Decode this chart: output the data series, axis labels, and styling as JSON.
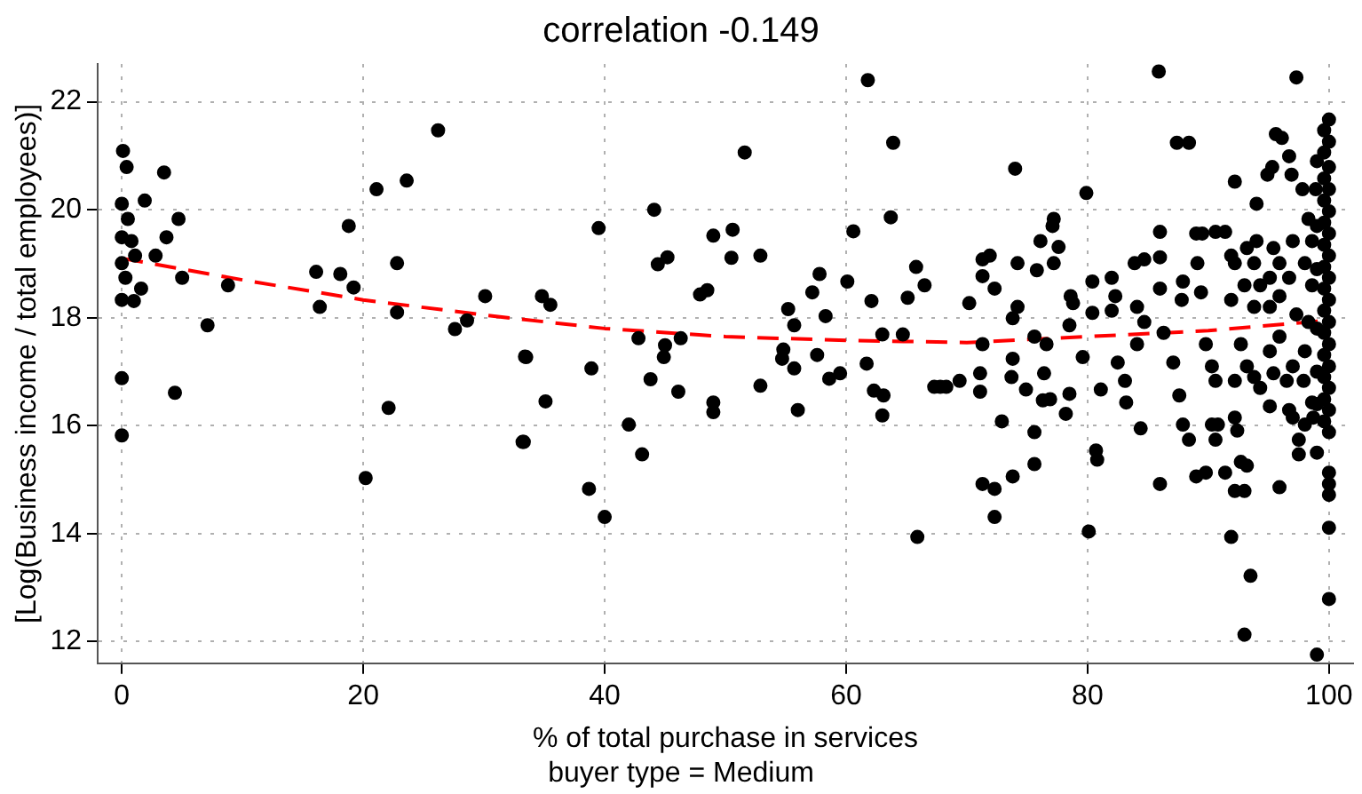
{
  "chart_data": {
    "type": "scatter",
    "title": "correlation -0.149",
    "subtitle": "buyer type = Medium",
    "xlabel": "% of total purchase in services",
    "ylabel": "[Log(Business income / total employees)]",
    "xlim": [
      -2,
      102
    ],
    "xticks": [
      0,
      20,
      40,
      60,
      80,
      100
    ],
    "ylim": [
      11.6,
      22.7
    ],
    "yticks": [
      12,
      14,
      16,
      18,
      20,
      22
    ],
    "grid": true,
    "legend": false,
    "series": [
      {
        "color": "#000000",
        "marker": "circle",
        "x": [
          0.1,
          0.4,
          3.5,
          0,
          1.9,
          0.5,
          4.7,
          0,
          3.7,
          0.8,
          0,
          2.8,
          1.1,
          5,
          0.3,
          1.6,
          0,
          1,
          8.8,
          7.1,
          0,
          4.4,
          0,
          16.1,
          18.1,
          19.2,
          16.4,
          21.1,
          23.6,
          26.2,
          18.8,
          22.8,
          22.8,
          22.1,
          20.2,
          27.6,
          28.6,
          30.1,
          33.4,
          33.2,
          34.8,
          35.5,
          33.5,
          35.1,
          33.3,
          39.5,
          38.9,
          42,
          43.1,
          38.7,
          40,
          42.8,
          44.1,
          44.4,
          45.2,
          45,
          44.9,
          46.3,
          43.8,
          46.1,
          47.9,
          48.5,
          49,
          50.6,
          50.5,
          51.6,
          52.9,
          49,
          49,
          52.9,
          54.8,
          55.2,
          55.7,
          54.7,
          55.7,
          56,
          57.2,
          57.8,
          58.3,
          57.6,
          58.6,
          59.5,
          60.1,
          60.6,
          61.8,
          63.9,
          63.7,
          62.1,
          61.7,
          62.3,
          63.1,
          63,
          63,
          64.7,
          65.1,
          65.8,
          66.5,
          67.3,
          65.9,
          67.8,
          68.3,
          69.4,
          70.2,
          71.3,
          71.9,
          71.3,
          72.3,
          71.3,
          71.1,
          71.1,
          72.9,
          71.3,
          72.3,
          72.3,
          73.8,
          74,
          74.2,
          73.8,
          74.2,
          73.8,
          73.7,
          74.9,
          75.6,
          75.6,
          75.8,
          76.1,
          77.2,
          77.1,
          77.6,
          77.2,
          75.6,
          76.6,
          76.4,
          76.9,
          76.3,
          78.6,
          78.8,
          78.5,
          78.5,
          78.2,
          79.6,
          79.9,
          80.4,
          80.4,
          81.1,
          80.7,
          80.8,
          80.1,
          82,
          82.3,
          82,
          82.5,
          83.1,
          83.2,
          83.9,
          84.7,
          86,
          84.1,
          84.1,
          84.4,
          84.7,
          85.9,
          86,
          86,
          86,
          86.3,
          87.1,
          87.4,
          88.4,
          87.9,
          87.8,
          87.6,
          87.9,
          88.4,
          89,
          89.5,
          89.1,
          89.4,
          89.8,
          90.3,
          90.6,
          89,
          89.8,
          90.3,
          90.8,
          90.6,
          91.4,
          90.6,
          91.4,
          92.2,
          91.9,
          91.9,
          92.2,
          92.2,
          92.2,
          92.4,
          92.7,
          91.9,
          92.2,
          93,
          93.5,
          93,
          93.2,
          93.2,
          94,
          94,
          93.8,
          94.3,
          93,
          93.8,
          92.7,
          93.2,
          93.8,
          94.3,
          94.9,
          95.3,
          95.6,
          96.1,
          96.9,
          97.8,
          96.7,
          97.3,
          95.4,
          95.1,
          95.1,
          95.9,
          95.9,
          96.7,
          97,
          97.3,
          95.9,
          95.1,
          95.4,
          96.5,
          97,
          95.1,
          96.7,
          97,
          97.5,
          98,
          97.5,
          95.9,
          97.9,
          98,
          98.3,
          98,
          98.3,
          98.6,
          98.6,
          98.9,
          98.6,
          98.7,
          100,
          99.6,
          100,
          99.6,
          100,
          99.6,
          100,
          99.6,
          100,
          99.6,
          100,
          99.6,
          100,
          99.6,
          100,
          99.6,
          100,
          99.6,
          100,
          99.6,
          100,
          99.6,
          100,
          99.6,
          100,
          99.6,
          100,
          99.6,
          100,
          100,
          100,
          100,
          100,
          100,
          99,
          99,
          99,
          99,
          99,
          99,
          99,
          99
        ],
        "values": [
          21.09,
          20.79,
          20.69,
          20.11,
          20.17,
          19.83,
          19.83,
          19.49,
          19.49,
          19.42,
          19.01,
          19.15,
          19.15,
          18.74,
          18.74,
          18.54,
          18.33,
          18.31,
          18.6,
          17.86,
          16.88,
          16.61,
          15.82,
          18.85,
          18.81,
          18.56,
          18.2,
          20.38,
          20.54,
          21.47,
          19.7,
          19.01,
          18.1,
          16.33,
          15.03,
          17.79,
          17.95,
          18.4,
          17.28,
          15.7,
          18.4,
          18.24,
          17.27,
          16.45,
          15.7,
          19.66,
          17.06,
          16.02,
          15.47,
          14.83,
          14.31,
          17.62,
          20,
          18.99,
          19.12,
          17.49,
          17.27,
          17.62,
          16.86,
          16.63,
          18.43,
          18.51,
          19.52,
          19.63,
          19.11,
          21.06,
          19.15,
          16.43,
          16.25,
          16.74,
          17.41,
          18.16,
          17.86,
          17.24,
          17.06,
          16.29,
          18.47,
          18.81,
          18.03,
          17.31,
          16.87,
          16.97,
          18.67,
          19.6,
          22.4,
          21.24,
          19.86,
          18.31,
          17.15,
          16.65,
          16.56,
          16.19,
          17.69,
          17.69,
          18.37,
          18.94,
          18.6,
          16.72,
          13.94,
          16.72,
          16.72,
          16.83,
          18.27,
          19.08,
          19.15,
          18.77,
          18.54,
          17.51,
          16.97,
          16.63,
          16.08,
          14.92,
          14.83,
          14.31,
          15.06,
          20.76,
          19.01,
          17.99,
          18.2,
          17.24,
          16.9,
          16.67,
          15.88,
          15.29,
          18.88,
          19.42,
          19.83,
          19.7,
          19.31,
          19.01,
          17.65,
          17.51,
          16.97,
          16.49,
          16.47,
          18.4,
          18.27,
          17.86,
          16.59,
          16.22,
          17.27,
          20.31,
          18.67,
          18.09,
          16.67,
          15.54,
          15.37,
          14.04,
          18.74,
          18.4,
          18.13,
          17.17,
          16.83,
          16.43,
          19.01,
          19.08,
          19.12,
          18.2,
          17.51,
          15.95,
          17.92,
          22.56,
          19.59,
          18.54,
          14.92,
          17.72,
          17.17,
          21.24,
          21.24,
          18.67,
          18.33,
          16.56,
          16.02,
          15.74,
          19.56,
          19.56,
          19.01,
          18.47,
          17.51,
          17.1,
          16.83,
          15.06,
          15.13,
          16.02,
          16.02,
          15.74,
          15.13,
          19.59,
          19.59,
          20.52,
          19.15,
          18.33,
          19.01,
          16.83,
          16.15,
          15.91,
          15.33,
          13.94,
          14.79,
          14.79,
          13.22,
          12.13,
          15.26,
          19.29,
          20.11,
          19.42,
          19.01,
          18.6,
          18.6,
          18.2,
          17.51,
          17.1,
          16.9,
          16.7,
          20.65,
          20.79,
          21.4,
          21.33,
          20.65,
          20.38,
          20.99,
          22.45,
          19.29,
          18.74,
          18.2,
          19.01,
          18.4,
          18.74,
          19.42,
          18.06,
          17.65,
          17.38,
          16.97,
          16.83,
          17.1,
          16.36,
          16.29,
          16.15,
          15.74,
          16.02,
          15.47,
          14.86,
          16.83,
          17.38,
          17.92,
          19.01,
          19.83,
          19.42,
          18.6,
          20.38,
          16.43,
          16.15,
          21.67,
          21.47,
          21.26,
          21.06,
          20.79,
          20.58,
          20.38,
          20.17,
          19.97,
          19.76,
          19.56,
          19.35,
          19.15,
          18.94,
          18.74,
          18.54,
          18.33,
          18.13,
          17.92,
          17.72,
          17.51,
          17.31,
          17.1,
          16.9,
          16.7,
          16.49,
          16.29,
          16.08,
          15.88,
          15.13,
          14.92,
          14.72,
          14.11,
          12.79,
          11.76,
          20.9,
          19.7,
          18.9,
          17.8,
          17.0,
          16.4,
          15.5
        ]
      },
      {
        "type": "line",
        "color": "#ff0000",
        "marker": "none",
        "line_style": "dashed",
        "x": [
          0,
          10,
          20,
          30,
          40,
          50,
          60,
          70,
          80,
          90,
          100
        ],
        "values": [
          19.1,
          18.7,
          18.33,
          18.05,
          17.8,
          17.65,
          17.58,
          17.54,
          17.65,
          17.76,
          17.95
        ]
      }
    ]
  }
}
